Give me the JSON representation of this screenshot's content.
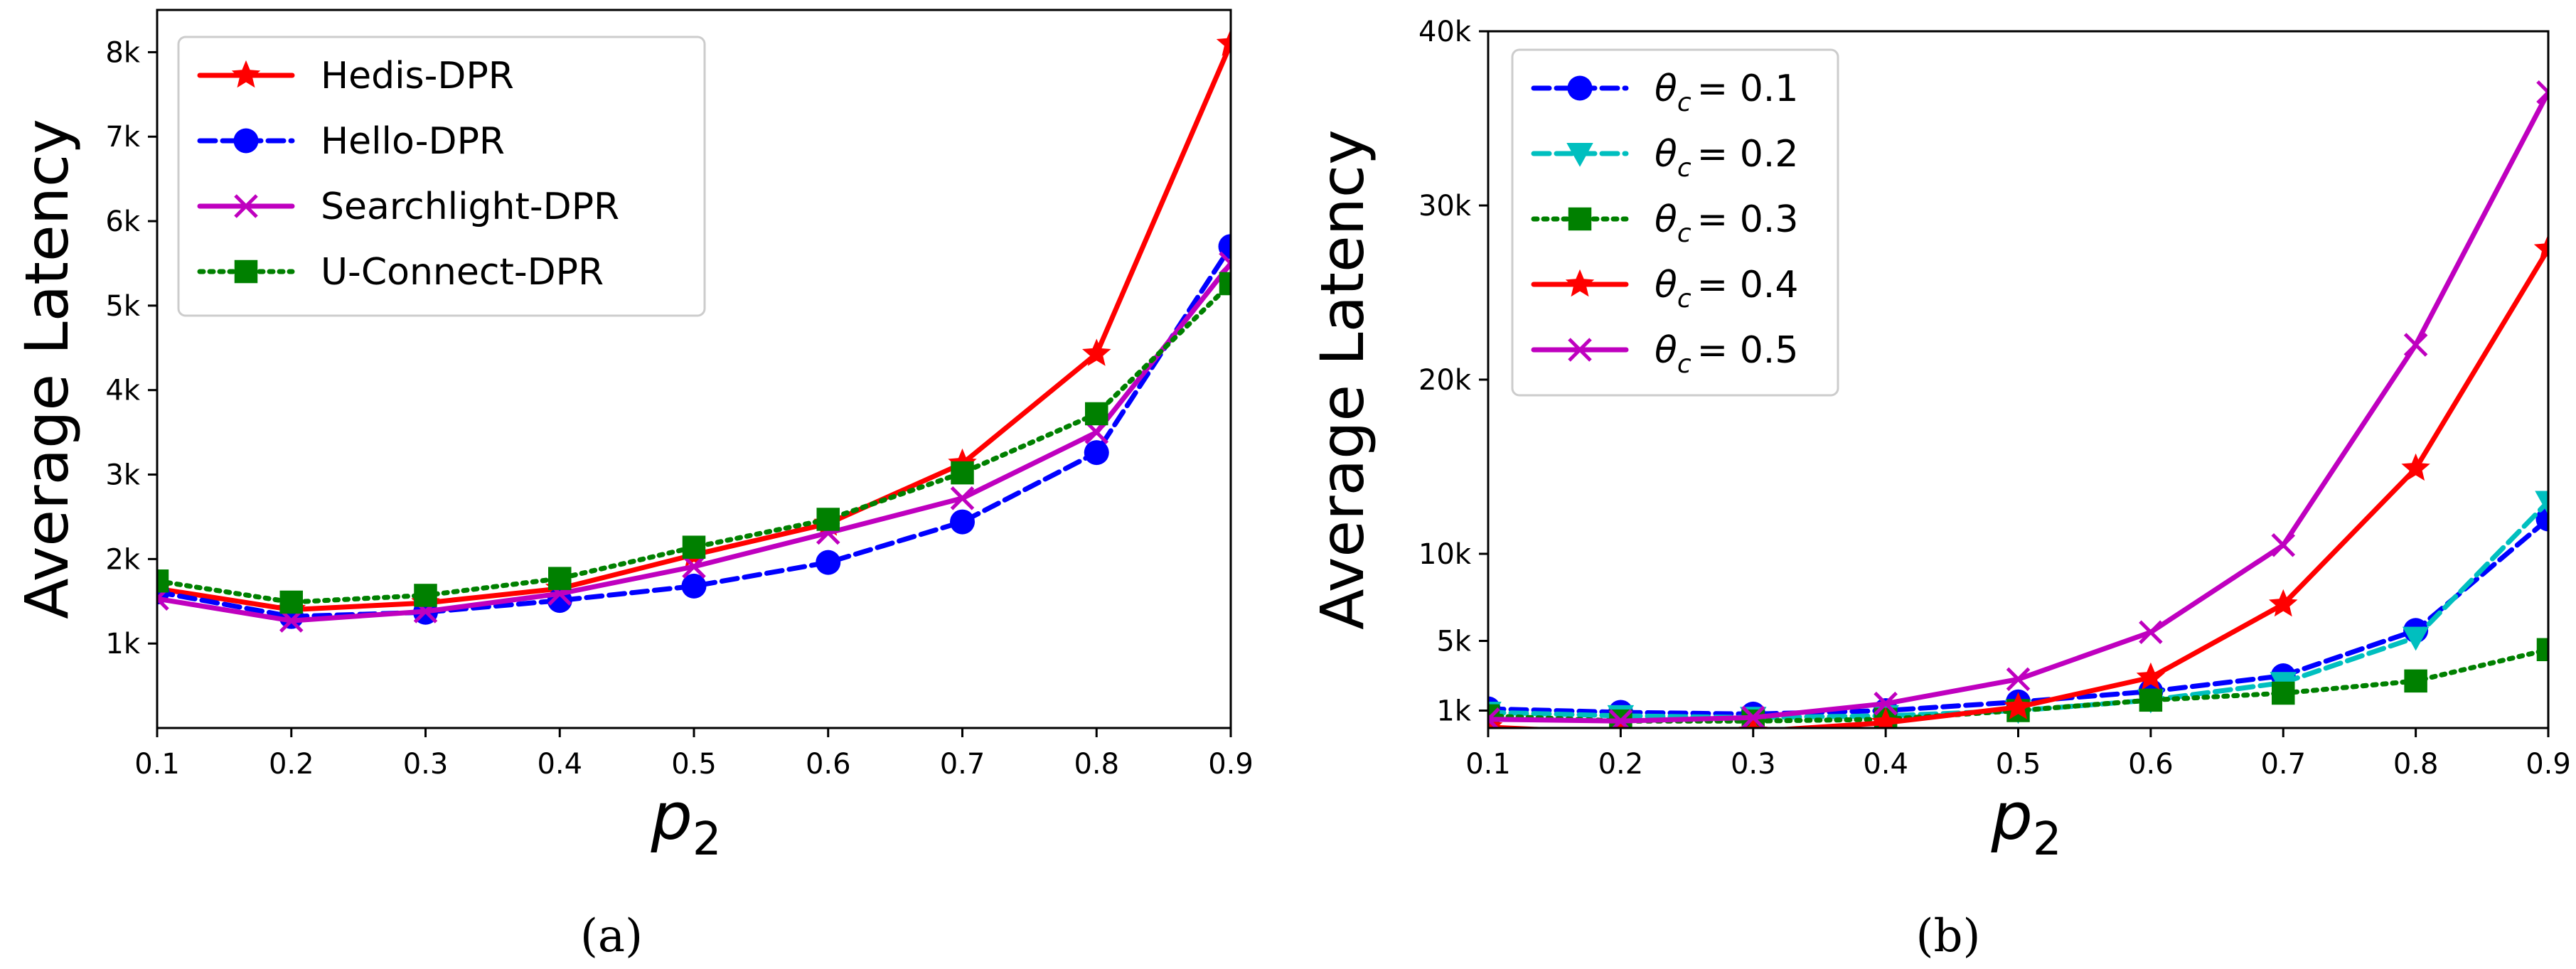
{
  "chart_data": [
    {
      "id": "a",
      "type": "line",
      "caption": "(a)",
      "xlabel_base": "p",
      "xlabel_sub": "2",
      "ylabel": "Average Latency",
      "xlim": [
        0.1,
        0.9
      ],
      "ylim": [
        0,
        8500
      ],
      "x": [
        0.1,
        0.2,
        0.3,
        0.4,
        0.5,
        0.6,
        0.7,
        0.8,
        0.9
      ],
      "xticks": [
        0.1,
        0.2,
        0.3,
        0.4,
        0.5,
        0.6,
        0.7,
        0.8,
        0.9
      ],
      "xtick_labels": [
        "0.1",
        "0.2",
        "0.3",
        "0.4",
        "0.5",
        "0.6",
        "0.7",
        "0.8",
        "0.9"
      ],
      "yticks": [
        1000,
        2000,
        3000,
        4000,
        5000,
        6000,
        7000,
        8000
      ],
      "ytick_labels": [
        "1k",
        "2k",
        "3k",
        "4k",
        "5k",
        "6k",
        "7k",
        "8k"
      ],
      "legend_position": "top-left",
      "series": [
        {
          "name": "Hedis-DPR",
          "color": "#ff0000",
          "dash": "solid",
          "marker": "star",
          "values": [
            1650,
            1400,
            1480,
            1650,
            2050,
            2420,
            3130,
            4430,
            8100
          ]
        },
        {
          "name": "Hello-DPR",
          "color": "#0000ff",
          "dash": "dashed",
          "marker": "circle",
          "values": [
            1610,
            1320,
            1370,
            1510,
            1680,
            1960,
            2440,
            3260,
            5700
          ]
        },
        {
          "name": "Searchlight-DPR",
          "color": "#bf00bf",
          "dash": "solid",
          "marker": "x",
          "values": [
            1530,
            1270,
            1380,
            1590,
            1910,
            2310,
            2720,
            3500,
            5500
          ]
        },
        {
          "name": "U-Connect-DPR",
          "color": "#008000",
          "dash": "dotted",
          "marker": "square",
          "values": [
            1740,
            1490,
            1570,
            1770,
            2140,
            2470,
            3020,
            3720,
            5260
          ]
        }
      ]
    },
    {
      "id": "b",
      "type": "line",
      "caption": "(b)",
      "xlabel_base": "p",
      "xlabel_sub": "2",
      "ylabel": "Average Latency",
      "xlim": [
        0.1,
        0.9
      ],
      "ylim": [
        0,
        40000
      ],
      "x": [
        0.1,
        0.2,
        0.3,
        0.4,
        0.5,
        0.6,
        0.7,
        0.8,
        0.9
      ],
      "xticks": [
        0.1,
        0.2,
        0.3,
        0.4,
        0.5,
        0.6,
        0.7,
        0.8,
        0.9
      ],
      "xtick_labels": [
        "0.1",
        "0.2",
        "0.3",
        "0.4",
        "0.5",
        "0.6",
        "0.7",
        "0.8",
        "0.9"
      ],
      "yticks": [
        1000,
        5000,
        10000,
        20000,
        30000,
        40000
      ],
      "ytick_labels": [
        "1k",
        "5k",
        "10k",
        "20k",
        "30k",
        "40k"
      ],
      "legend_position": "top-left",
      "legend_prefix": "θ",
      "legend_sub": "c",
      "series": [
        {
          "name": "θc = 0.1",
          "label_value": "= 0.1",
          "color": "#0000ff",
          "dash": "dashed",
          "marker": "circle",
          "values": [
            1100,
            900,
            800,
            1000,
            1500,
            2100,
            3000,
            5600,
            12000
          ]
        },
        {
          "name": "θc = 0.2",
          "label_value": "= 0.2",
          "color": "#00bfbf",
          "dash": "dashed",
          "marker": "triangle-down",
          "values": [
            900,
            700,
            600,
            700,
            1000,
            1600,
            2600,
            5200,
            13000
          ]
        },
        {
          "name": "θc = 0.3",
          "label_value": "= 0.3",
          "color": "#008000",
          "dash": "dotted",
          "marker": "square",
          "values": [
            700,
            400,
            400,
            500,
            1000,
            1600,
            2000,
            2700,
            4500
          ]
        },
        {
          "name": "θc = 0.4",
          "label_value": "= 0.4",
          "color": "#ff0000",
          "dash": "solid",
          "marker": "star",
          "values": [
            50,
            -300,
            -200,
            300,
            1200,
            2900,
            7100,
            14900,
            27500
          ]
        },
        {
          "name": "θc = 0.5",
          "label_value": "= 0.5",
          "color": "#bf00bf",
          "dash": "solid",
          "marker": "x",
          "values": [
            500,
            400,
            600,
            1400,
            2800,
            5500,
            10500,
            22000,
            36500
          ]
        }
      ]
    }
  ]
}
